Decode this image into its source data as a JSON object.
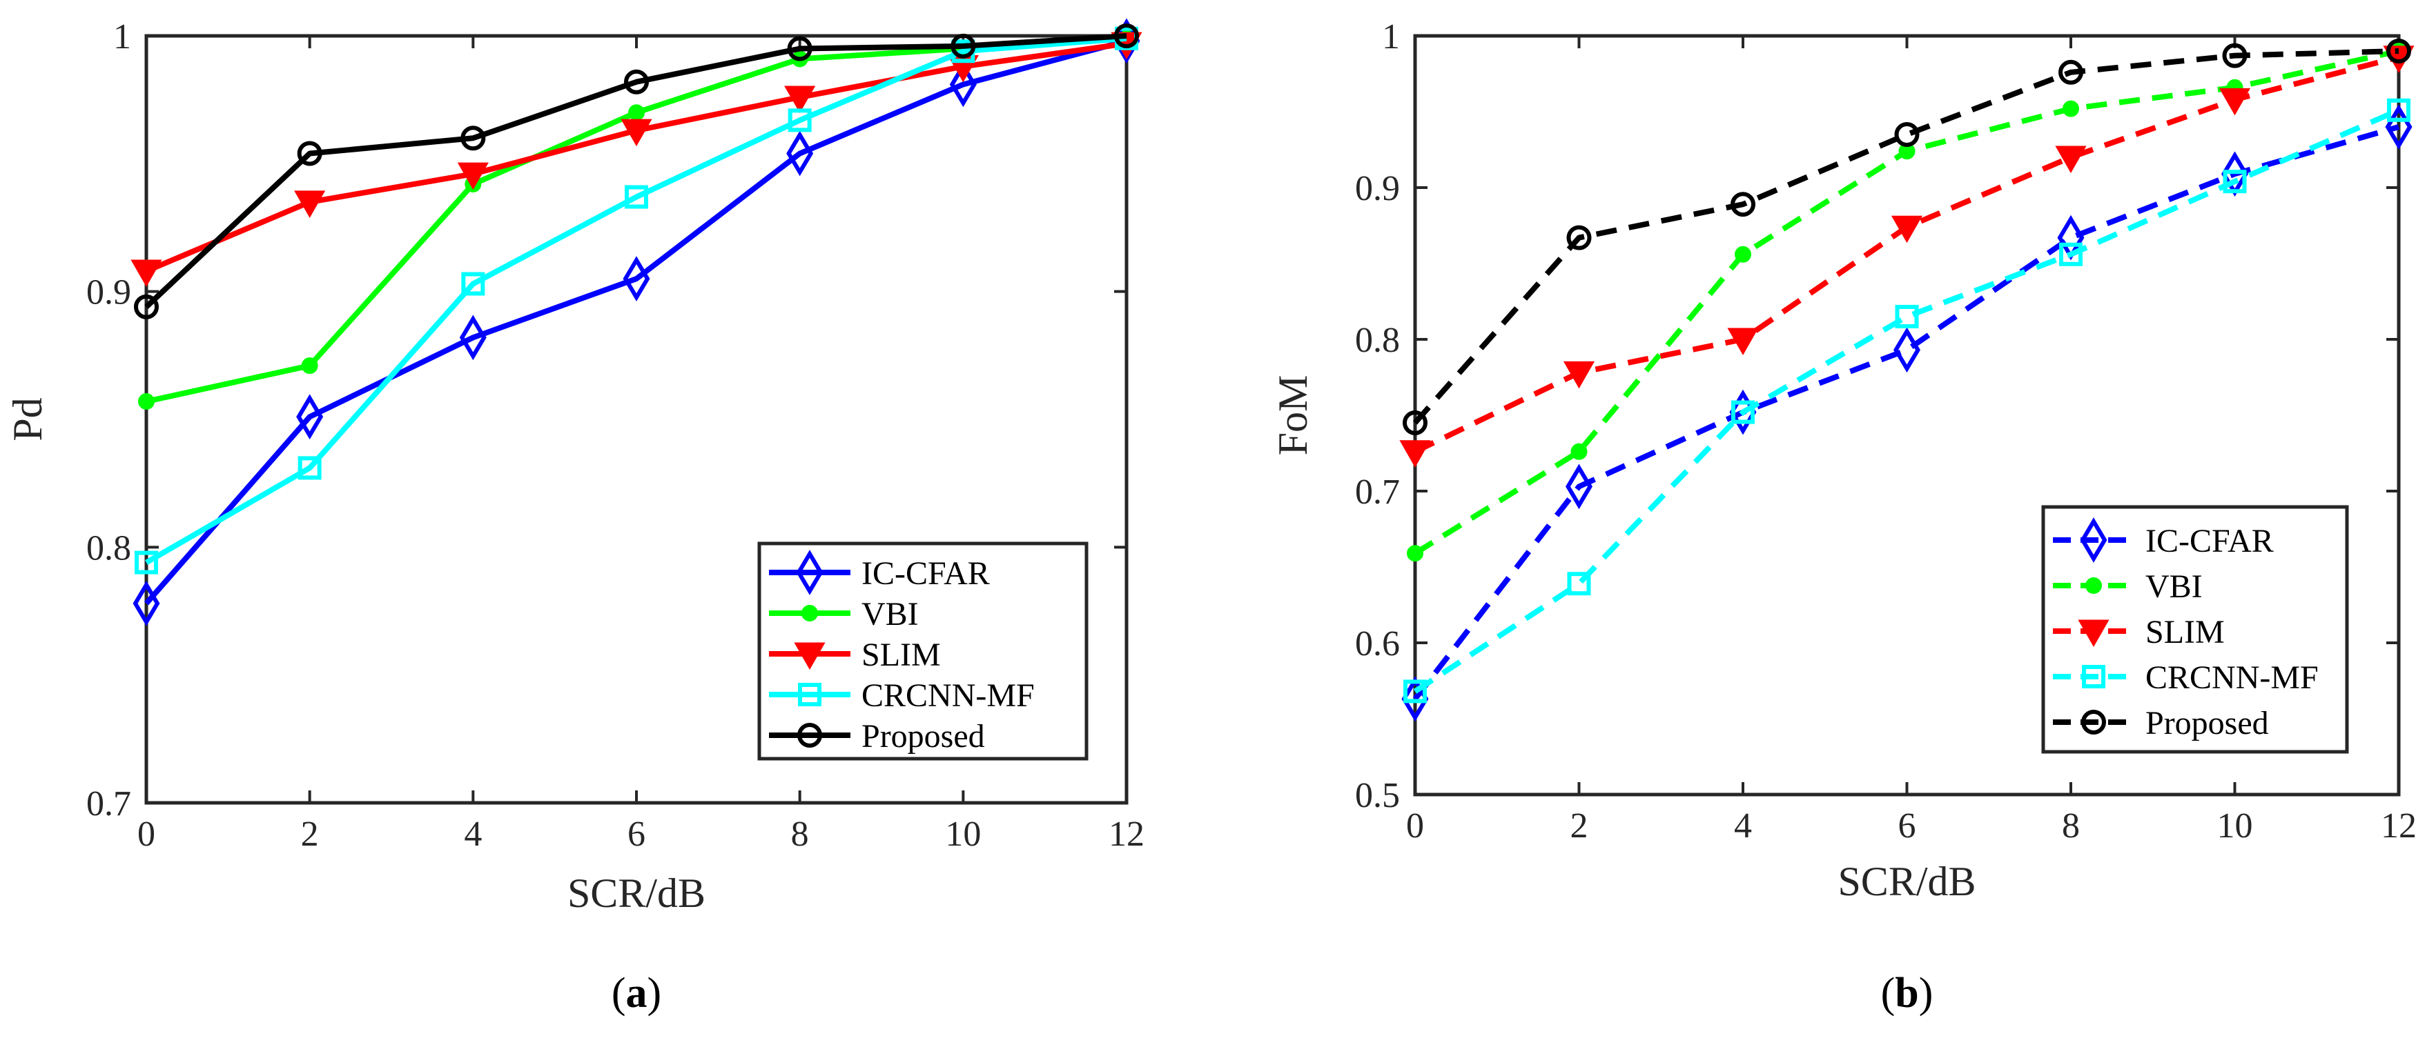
{
  "chart_data": [
    {
      "type": "line",
      "panel_label": "a",
      "xlabel": "SCR/dB",
      "ylabel": "Pd",
      "xlim": [
        0,
        12
      ],
      "ylim": [
        0.7,
        1.0
      ],
      "xticks": [
        0,
        2,
        4,
        6,
        8,
        10,
        12
      ],
      "yticks": [
        0.7,
        0.8,
        0.9,
        1.0
      ],
      "xtick_labels": [
        "0",
        "2",
        "4",
        "6",
        "8",
        "10",
        "12"
      ],
      "ytick_labels": [
        "0.7",
        "0.8",
        "0.9",
        "1"
      ],
      "grid": false,
      "legend_position": "bottom-right",
      "x": [
        0,
        2,
        4,
        6,
        8,
        10,
        12
      ],
      "series": [
        {
          "name": "IC-CFAR",
          "color": "#0000FF",
          "marker": "diamond",
          "line": "solid",
          "values": [
            0.778,
            0.851,
            0.882,
            0.905,
            0.954,
            0.981,
            0.998
          ]
        },
        {
          "name": "VBI",
          "color": "#00FF00",
          "marker": "dot",
          "line": "solid",
          "values": [
            0.857,
            0.871,
            0.942,
            0.97,
            0.991,
            0.995,
            0.999
          ]
        },
        {
          "name": "SLIM",
          "color": "#FF0000",
          "marker": "triangle-down",
          "line": "solid",
          "values": [
            0.908,
            0.935,
            0.946,
            0.963,
            0.976,
            0.988,
            0.997
          ]
        },
        {
          "name": "CRCNN-MF",
          "color": "#00FFFF",
          "marker": "square",
          "line": "solid",
          "values": [
            0.794,
            0.831,
            0.903,
            0.937,
            0.967,
            0.994,
            0.999
          ]
        },
        {
          "name": "Proposed",
          "color": "#000000",
          "marker": "circle",
          "line": "solid",
          "values": [
            0.894,
            0.954,
            0.96,
            0.982,
            0.995,
            0.996,
            1.0
          ]
        }
      ]
    },
    {
      "type": "line",
      "panel_label": "b",
      "xlabel": "SCR/dB",
      "ylabel": "FoM",
      "xlim": [
        0,
        12
      ],
      "ylim": [
        0.5,
        1.0
      ],
      "xticks": [
        0,
        2,
        4,
        6,
        8,
        10,
        12
      ],
      "yticks": [
        0.5,
        0.6,
        0.7,
        0.8,
        0.9,
        1.0
      ],
      "xtick_labels": [
        "0",
        "2",
        "4",
        "6",
        "8",
        "10",
        "12"
      ],
      "ytick_labels": [
        "0.5",
        "0.6",
        "0.7",
        "0.8",
        "0.9",
        "1"
      ],
      "grid": false,
      "legend_position": "bottom-right",
      "x": [
        0,
        2,
        4,
        6,
        8,
        10,
        12
      ],
      "series": [
        {
          "name": "IC-CFAR",
          "color": "#0000FF",
          "marker": "diamond",
          "line": "dashed",
          "values": [
            0.563,
            0.703,
            0.752,
            0.793,
            0.867,
            0.909,
            0.94
          ]
        },
        {
          "name": "VBI",
          "color": "#00FF00",
          "marker": "dot",
          "line": "dashed",
          "values": [
            0.659,
            0.726,
            0.856,
            0.924,
            0.952,
            0.966,
            0.99
          ]
        },
        {
          "name": "SLIM",
          "color": "#FF0000",
          "marker": "triangle-down",
          "line": "dashed",
          "values": [
            0.726,
            0.778,
            0.8,
            0.874,
            0.92,
            0.958,
            0.986
          ]
        },
        {
          "name": "CRCNN-MF",
          "color": "#00FFFF",
          "marker": "square",
          "line": "dashed",
          "values": [
            0.568,
            0.639,
            0.752,
            0.815,
            0.856,
            0.904,
            0.951
          ]
        },
        {
          "name": "Proposed",
          "color": "#000000",
          "marker": "circle",
          "line": "dashed",
          "values": [
            0.745,
            0.867,
            0.889,
            0.935,
            0.976,
            0.987,
            0.99
          ]
        }
      ]
    }
  ]
}
